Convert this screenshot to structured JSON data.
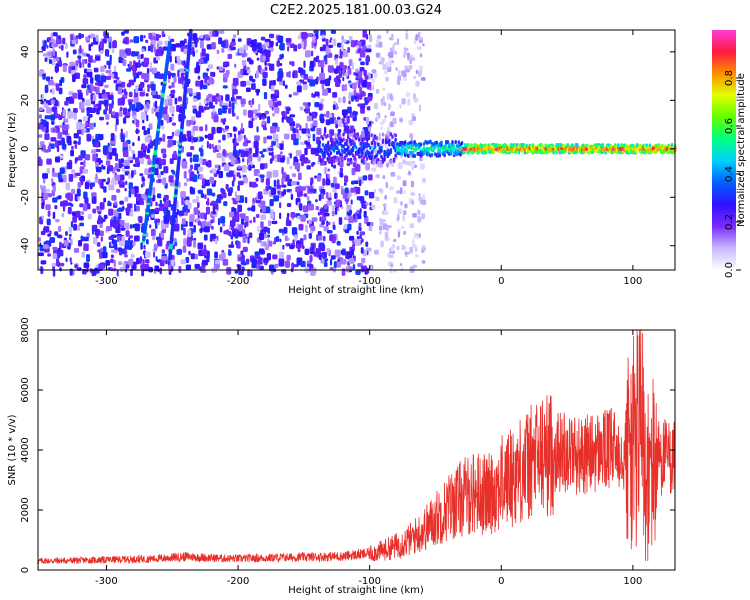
{
  "title": "C2E2.2025.181.00.03.G24",
  "chart_data": [
    {
      "type": "heatmap",
      "xlabel": "Height of straight line (km)",
      "ylabel": "Frequency (Hz)",
      "xlim": [
        -352,
        132
      ],
      "ylim": [
        -50,
        49
      ],
      "xticks": [
        -300,
        -200,
        -100,
        0,
        100
      ],
      "yticks": [
        -40,
        -20,
        0,
        20,
        40
      ],
      "colorbar": {
        "label": "Normalized spectral amplitude",
        "range": [
          0,
          1
        ],
        "ticks": [
          0.0,
          0.2,
          0.4,
          0.6,
          0.8
        ],
        "tick_labels": [
          "0.0",
          "0.2",
          "0.4",
          "0.6",
          "0.8"
        ],
        "colormap": [
          "#ffffff",
          "#c8b8ff",
          "#7a2cff",
          "#3010ff",
          "#0060ff",
          "#00d0ff",
          "#00ff80",
          "#60ff00",
          "#e0ff00",
          "#ff9000",
          "#ff1a40",
          "#ff3cd8"
        ]
      },
      "features": [
        {
          "kind": "noise_region",
          "x_range": [
            -352,
            -100
          ],
          "f_range": [
            -50,
            49
          ],
          "amplitude": 0.18
        },
        {
          "kind": "sparse_noise",
          "x_range": [
            -100,
            -60
          ],
          "f_range": [
            -50,
            49
          ],
          "amplitude": 0.08
        },
        {
          "kind": "diagonal_streak",
          "x_start": -272,
          "x_end": -252,
          "f_start": -38,
          "f_end": 44,
          "amplitude": 0.35
        },
        {
          "kind": "diagonal_streak",
          "x_start": -252,
          "x_end": -236,
          "f_start": -45,
          "f_end": 49,
          "amplitude": 0.3
        },
        {
          "kind": "tone_line",
          "x_range": [
            -140,
            132
          ],
          "f_center": 0.0,
          "amplitude": 0.9
        }
      ]
    },
    {
      "type": "line",
      "xlabel": "Height of straight line (km)",
      "ylabel": "SNR (10 * v/v)",
      "xlim": [
        -352,
        132
      ],
      "ylim": [
        0,
        8000
      ],
      "xticks": [
        -300,
        -200,
        -100,
        0,
        100
      ],
      "yticks": [
        0,
        2000,
        4000,
        6000,
        8000
      ],
      "series_color": "#e8302a",
      "series": [
        {
          "x": [
            -352,
            -320,
            -300,
            -280,
            -260,
            -240,
            -220,
            -200,
            -180,
            -160,
            -140,
            -120,
            -100,
            -90,
            -80,
            -70,
            -60,
            -50,
            -40,
            -30,
            -20,
            -10,
            0,
            10,
            20,
            30,
            40,
            50,
            60,
            70,
            80,
            90,
            100,
            105,
            110,
            115,
            120,
            132
          ],
          "y": [
            300,
            320,
            340,
            360,
            380,
            450,
            400,
            380,
            400,
            420,
            440,
            460,
            550,
            650,
            800,
            1000,
            1300,
            1700,
            2100,
            2400,
            2600,
            2500,
            2900,
            3200,
            3500,
            3800,
            3900,
            4000,
            3800,
            3900,
            4000,
            4050,
            4000,
            5000,
            3000,
            3500,
            3800,
            3700
          ]
        }
      ]
    }
  ]
}
